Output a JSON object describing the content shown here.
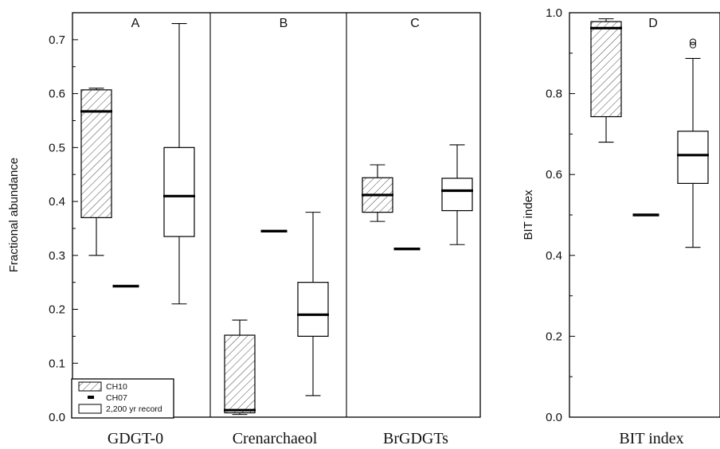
{
  "chart_data": [
    {
      "type": "box",
      "ylabel": "Fractional abundance",
      "ylim": [
        0,
        0.75
      ],
      "yticks": [
        "0.0",
        "0.1",
        "0.2",
        "0.3",
        "0.4",
        "0.5",
        "0.6",
        "0.7"
      ],
      "yticks_values": [
        0,
        0.1,
        0.2,
        0.3,
        0.4,
        0.5,
        0.6,
        0.7
      ],
      "legend": {
        "placement": "bottom-left",
        "entries": [
          {
            "label": "CH10",
            "style": "hatched-box"
          },
          {
            "label": "CH07",
            "style": "bar"
          },
          {
            "label": "2,200 yr record",
            "style": "open-box"
          }
        ]
      },
      "panels": [
        {
          "letter": "A",
          "category": "GDGT-0",
          "CH10": {
            "whisker_low": 0.3,
            "q1": 0.37,
            "median": 0.567,
            "q3": 0.607,
            "whisker_high": 0.61
          },
          "CH07": {
            "value": 0.243
          },
          "record_2200yr": {
            "whisker_low": 0.21,
            "q1": 0.335,
            "median": 0.41,
            "q3": 0.5,
            "whisker_high": 0.73
          }
        },
        {
          "letter": "B",
          "category": "Crenarchaeol",
          "CH10": {
            "whisker_low": 0.005,
            "q1": 0.008,
            "median": 0.013,
            "q3": 0.152,
            "whisker_high": 0.18
          },
          "CH07": {
            "value": 0.345
          },
          "record_2200yr": {
            "whisker_low": 0.04,
            "q1": 0.15,
            "median": 0.19,
            "q3": 0.25,
            "whisker_high": 0.38
          }
        },
        {
          "letter": "C",
          "category": "BrGDGTs",
          "CH10": {
            "whisker_low": 0.363,
            "q1": 0.38,
            "median": 0.412,
            "q3": 0.444,
            "whisker_high": 0.468
          },
          "CH07": {
            "value": 0.312
          },
          "record_2200yr": {
            "whisker_low": 0.32,
            "q1": 0.383,
            "median": 0.42,
            "q3": 0.443,
            "whisker_high": 0.505
          }
        }
      ]
    },
    {
      "type": "box",
      "ylabel": "BIT index",
      "ylim": [
        0,
        1.0
      ],
      "yticks": [
        "0.0",
        "0.2",
        "0.4",
        "0.6",
        "0.8",
        "1.0"
      ],
      "yticks_values": [
        0,
        0.2,
        0.4,
        0.6,
        0.8,
        1.0
      ],
      "panels": [
        {
          "letter": "D",
          "category": "BIT index",
          "CH10": {
            "whisker_low": 0.68,
            "q1": 0.743,
            "median": 0.962,
            "q3": 0.978,
            "whisker_high": 0.985
          },
          "CH07": {
            "value": 0.5
          },
          "record_2200yr": {
            "whisker_low": 0.42,
            "q1": 0.578,
            "median": 0.648,
            "q3": 0.707,
            "whisker_high": 0.887,
            "outliers": [
              0.92,
              0.928
            ]
          }
        }
      ]
    }
  ]
}
